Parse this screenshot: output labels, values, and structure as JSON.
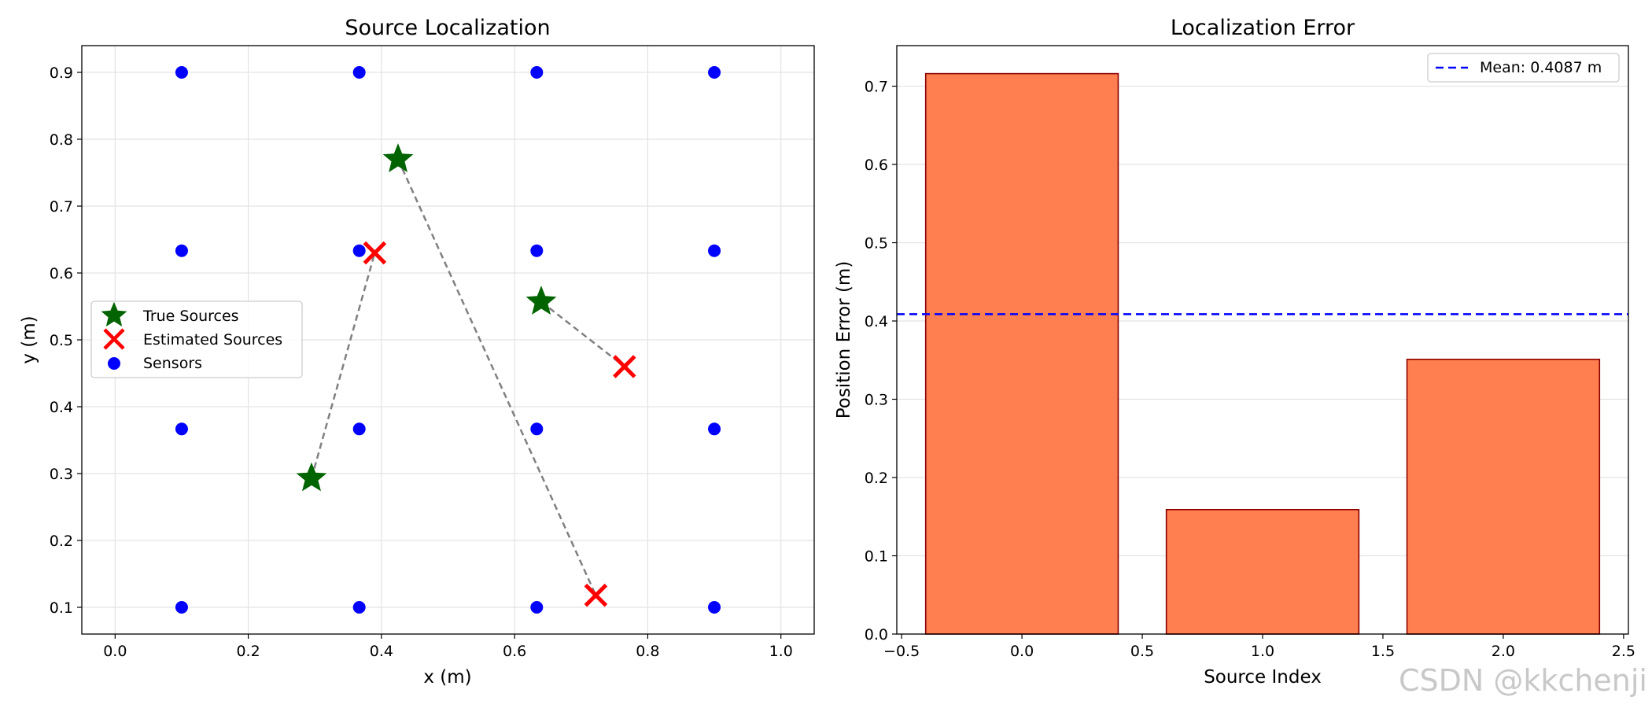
{
  "chart_data": [
    {
      "type": "scatter",
      "title": "Source Localization",
      "xlabel": "x (m)",
      "ylabel": "y (m)",
      "xlim": [
        -0.05,
        1.05
      ],
      "ylim": [
        0.06,
        0.94
      ],
      "xticks": [
        0.0,
        0.2,
        0.4,
        0.6,
        0.8,
        1.0
      ],
      "xtick_labels": [
        "0.0",
        "0.2",
        "0.4",
        "0.6",
        "0.8",
        "1.0"
      ],
      "yticks": [
        0.1,
        0.2,
        0.3,
        0.4,
        0.5,
        0.6,
        0.7,
        0.8,
        0.9
      ],
      "ytick_labels": [
        "0.1",
        "0.2",
        "0.3",
        "0.4",
        "0.5",
        "0.6",
        "0.7",
        "0.8",
        "0.9"
      ],
      "grid": true,
      "legend_position": "center-left",
      "legend": [
        "True Sources",
        "Estimated Sources",
        "Sensors"
      ],
      "sensors": {
        "name": "Sensors",
        "color": "#0000ff",
        "x": [
          0.1,
          0.3667,
          0.6333,
          0.9,
          0.1,
          0.3667,
          0.6333,
          0.9,
          0.1,
          0.3667,
          0.6333,
          0.9,
          0.1,
          0.3667,
          0.6333,
          0.9
        ],
        "y": [
          0.1,
          0.1,
          0.1,
          0.1,
          0.3667,
          0.3667,
          0.3667,
          0.3667,
          0.6333,
          0.6333,
          0.6333,
          0.6333,
          0.9,
          0.9,
          0.9,
          0.9
        ]
      },
      "true_sources": {
        "name": "True Sources",
        "color": "#006400",
        "x": [
          0.425,
          0.295,
          0.64
        ],
        "y": [
          0.77,
          0.293,
          0.557
        ]
      },
      "estimated_sources": {
        "name": "Estimated Sources",
        "color": "#ff0000",
        "x": [
          0.722,
          0.39,
          0.765
        ],
        "y": [
          0.118,
          0.63,
          0.46
        ]
      },
      "connector_color": "#808080"
    },
    {
      "type": "bar",
      "title": "Localization Error",
      "xlabel": "Source Index",
      "ylabel": "Position Error (m)",
      "categories": [
        0,
        1,
        2
      ],
      "values": [
        0.716,
        0.159,
        0.351
      ],
      "bar_color": "#ff7f50",
      "edge_color": "#8b0000",
      "xlim": [
        -0.52,
        2.52
      ],
      "ylim": [
        0.0,
        0.7518
      ],
      "xticks": [
        -0.5,
        0.0,
        0.5,
        1.0,
        1.5,
        2.0,
        2.5
      ],
      "xtick_labels": [
        "−0.5",
        "0.0",
        "0.5",
        "1.0",
        "1.5",
        "2.0",
        "2.5"
      ],
      "yticks": [
        0.0,
        0.1,
        0.2,
        0.3,
        0.4,
        0.5,
        0.6,
        0.7
      ],
      "ytick_labels": [
        "0.0",
        "0.1",
        "0.2",
        "0.3",
        "0.4",
        "0.5",
        "0.6",
        "0.7"
      ],
      "grid": "y",
      "mean_line": {
        "value": 0.4087,
        "label": "Mean: 0.4087 m",
        "color": "#0000ff"
      },
      "legend_position": "top-right"
    }
  ],
  "watermark": "CSDN @kkchenji"
}
